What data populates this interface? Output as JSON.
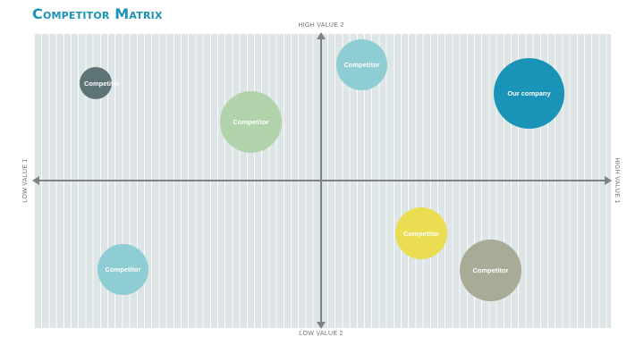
{
  "title": "Competitor Matrix",
  "axes": {
    "top": "HIGH VALUE 2",
    "bottom": "LOW VALUE 2",
    "left": "LOW VALUE 1",
    "right": "HIGH VALUE 1"
  },
  "bubbles": [
    {
      "label": "Competitor",
      "color": "#5e7376"
    },
    {
      "label": "Competitor",
      "color": "#b1d3ab"
    },
    {
      "label": "Competitor",
      "color": "#8ecdd3"
    },
    {
      "label": "Our company",
      "color": "#1a93b8"
    },
    {
      "label": "Competitor",
      "color": "#eadd52"
    },
    {
      "label": "Competitor",
      "color": "#a8ab95"
    },
    {
      "label": "Competitor",
      "color": "#8ecdd3"
    }
  ]
}
